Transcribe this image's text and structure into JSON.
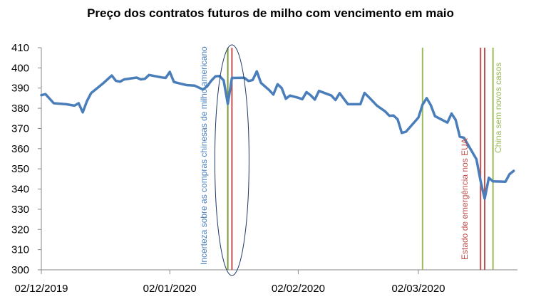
{
  "chart_data": {
    "type": "line",
    "title": "Preço dos contratos futuros de milho com vencimento em maio",
    "xlabel": "",
    "ylabel": "",
    "ylim": [
      300,
      410
    ],
    "yticks": [
      300,
      310,
      320,
      330,
      340,
      350,
      360,
      370,
      380,
      390,
      400,
      410
    ],
    "xlim": [
      "2019-12-02",
      "2020-03-24"
    ],
    "xticks": [
      {
        "date": "2019-12-02",
        "label": "02/12/2019"
      },
      {
        "date": "2020-01-02",
        "label": "02/01/2020"
      },
      {
        "date": "2020-02-02",
        "label": "02/02/2020"
      },
      {
        "date": "2020-03-02",
        "label": "02/03/2020"
      }
    ],
    "grid": false,
    "series": [
      {
        "color": "#4a7ebb",
        "points": [
          [
            "2019-12-02",
            386.5
          ],
          [
            "2019-12-03",
            387
          ],
          [
            "2019-12-05",
            382.5
          ],
          [
            "2019-12-08",
            382
          ],
          [
            "2019-12-10",
            381.3
          ],
          [
            "2019-12-11",
            382.5
          ],
          [
            "2019-12-12",
            378
          ],
          [
            "2019-12-13",
            383.5
          ],
          [
            "2019-12-14",
            387.5
          ],
          [
            "2019-12-17",
            392.5
          ],
          [
            "2019-12-19",
            396.2
          ],
          [
            "2019-12-20",
            393.6
          ],
          [
            "2019-12-21",
            393.2
          ],
          [
            "2019-12-22",
            394.3
          ],
          [
            "2019-12-25",
            395.2
          ],
          [
            "2019-12-26",
            394.3
          ],
          [
            "2019-12-27",
            394.6
          ],
          [
            "2019-12-28",
            396.5
          ],
          [
            "2019-12-31",
            395.3
          ],
          [
            "2020-01-01",
            395
          ],
          [
            "2020-01-02",
            398
          ],
          [
            "2020-01-03",
            393
          ],
          [
            "2020-01-06",
            391.5
          ],
          [
            "2020-01-08",
            391.2
          ],
          [
            "2020-01-10",
            389.3
          ],
          [
            "2020-01-11",
            390.8
          ],
          [
            "2020-01-12",
            393.6
          ],
          [
            "2020-01-13",
            395.8
          ],
          [
            "2020-01-14",
            396
          ],
          [
            "2020-01-15",
            393.8
          ],
          [
            "2020-01-16",
            382.2
          ],
          [
            "2020-01-17",
            395
          ],
          [
            "2020-01-20",
            395.1
          ],
          [
            "2020-01-21",
            393.5
          ],
          [
            "2020-01-22",
            394
          ],
          [
            "2020-01-23",
            398.3
          ],
          [
            "2020-01-24",
            392.6
          ],
          [
            "2020-01-26",
            389
          ],
          [
            "2020-01-27",
            386.8
          ],
          [
            "2020-01-28",
            391.9
          ],
          [
            "2020-01-29",
            390
          ],
          [
            "2020-01-30",
            384.7
          ],
          [
            "2020-01-31",
            386.3
          ],
          [
            "2020-02-02",
            385.2
          ],
          [
            "2020-02-03",
            384.5
          ],
          [
            "2020-02-04",
            388
          ],
          [
            "2020-02-05",
            386.4
          ],
          [
            "2020-02-06",
            384.3
          ],
          [
            "2020-02-07",
            388.6
          ],
          [
            "2020-02-10",
            386.3
          ],
          [
            "2020-02-11",
            384.1
          ],
          [
            "2020-02-12",
            387.5
          ],
          [
            "2020-02-13",
            384.7
          ],
          [
            "2020-02-14",
            382
          ],
          [
            "2020-02-17",
            382
          ],
          [
            "2020-02-18",
            387.6
          ],
          [
            "2020-02-19",
            385.6
          ],
          [
            "2020-02-21",
            381.3
          ],
          [
            "2020-02-23",
            378.4
          ],
          [
            "2020-02-24",
            376.3
          ],
          [
            "2020-02-25",
            376.4
          ],
          [
            "2020-02-26",
            374.5
          ],
          [
            "2020-02-27",
            367.8
          ],
          [
            "2020-02-28",
            368.4
          ],
          [
            "2020-03-02",
            375.4
          ],
          [
            "2020-03-03",
            381.8
          ],
          [
            "2020-03-04",
            385
          ],
          [
            "2020-03-05",
            381.5
          ],
          [
            "2020-03-06",
            376.1
          ],
          [
            "2020-03-09",
            372.9
          ],
          [
            "2020-03-10",
            377.4
          ],
          [
            "2020-03-11",
            374.2
          ],
          [
            "2020-03-12",
            365.9
          ],
          [
            "2020-03-13",
            365.4
          ],
          [
            "2020-03-16",
            354.8
          ],
          [
            "2020-03-17",
            344
          ],
          [
            "2020-03-18",
            335.2
          ],
          [
            "2020-03-19",
            345.6
          ],
          [
            "2020-03-20",
            343.8
          ],
          [
            "2020-03-23",
            343.6
          ],
          [
            "2020-03-24",
            347.4
          ],
          [
            "2020-03-25",
            349
          ]
        ]
      }
    ],
    "vlines": [
      {
        "date": "2020-01-16",
        "color": "#7f9a3b"
      },
      {
        "date": "2020-01-17",
        "color": "#c0504d"
      },
      {
        "date": "2020-03-03",
        "color": "#9bbb59"
      },
      {
        "date": "2020-03-17",
        "color": "#c0504d"
      },
      {
        "date": "2020-03-18",
        "color": "#c0504d"
      },
      {
        "date": "2020-03-20",
        "color": "#9bbb59"
      }
    ],
    "annotations": [
      {
        "text": "Incerteza sobre as compras chinesas de milho americano",
        "color": "#4a7ebb"
      },
      {
        "text": "Estado de emergência nos EUA",
        "color": "#c0504d"
      },
      {
        "text": "China sem novos casos",
        "color": "#9bbb59"
      }
    ],
    "highlight_ellipse": {
      "date": "2020-01-17",
      "color": "#1f3864"
    }
  }
}
